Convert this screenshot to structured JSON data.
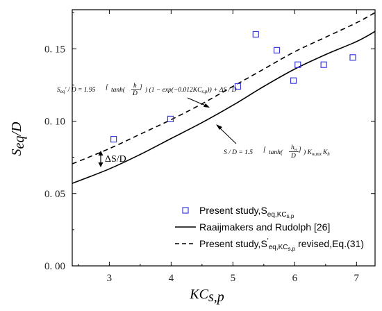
{
  "chart_data": {
    "type": "scatter",
    "xlabel": "KC",
    "xlabel_sub": "s,p",
    "ylabel": "S",
    "ylabel_sub": "eq",
    "ylabel_tail": "/D",
    "xlim": [
      2.4,
      7.3
    ],
    "ylim": [
      0.0,
      0.177
    ],
    "xticks": [
      3,
      4,
      5,
      6,
      7
    ],
    "xtick_labels": [
      "3",
      "4",
      "5",
      "6",
      "7"
    ],
    "yticks": [
      0.0,
      0.05,
      0.1,
      0.15
    ],
    "ytick_labels": [
      "0. 00",
      "0. 05",
      "0. 10",
      "0. 15"
    ],
    "grid": false,
    "legend_position": "bottom-right",
    "series": [
      {
        "name": "Present study,S",
        "name_sub": "eq,KC",
        "name_subsub": "s,p",
        "kind": "scatter",
        "marker": "open-square",
        "color": "#3b3bd9",
        "x": [
          3.07,
          3.99,
          5.08,
          5.37,
          5.71,
          5.98,
          6.05,
          6.47,
          6.94
        ],
        "y": [
          0.0875,
          0.1015,
          0.124,
          0.16,
          0.149,
          0.128,
          0.139,
          0.139,
          0.144
        ]
      },
      {
        "name": "Raaijmakers and Rudolph [26]",
        "kind": "line",
        "style": "solid",
        "color": "#000000",
        "x": [
          2.4,
          3.0,
          3.5,
          4.0,
          4.5,
          5.0,
          5.5,
          6.0,
          6.5,
          7.0,
          7.3
        ],
        "y": [
          0.057,
          0.067,
          0.077,
          0.088,
          0.099,
          0.111,
          0.124,
          0.136,
          0.146,
          0.155,
          0.162
        ]
      },
      {
        "name": "Present study,S",
        "name_sup": "'",
        "name_sub": "eq,KC",
        "name_subsub": "s,p",
        "name_tail": " revised,Eq.(31)",
        "kind": "line",
        "style": "dashed",
        "color": "#000000",
        "x": [
          2.4,
          3.0,
          3.5,
          4.0,
          4.5,
          5.0,
          5.5,
          6.0,
          6.5,
          7.0,
          7.3
        ],
        "y": [
          0.0705,
          0.081,
          0.091,
          0.101,
          0.112,
          0.124,
          0.136,
          0.148,
          0.158,
          0.168,
          0.175
        ]
      }
    ],
    "annotations": {
      "dashed_formula_a": "S",
      "dashed_formula_b": "' / D = 1.95",
      "dashed_formula_c": "tanh(",
      "dashed_formula_c2": "h",
      "dashed_formula_d": "D",
      "dashed_formula_e": ") (1 − exp(−0.012KC",
      "dashed_formula_e_sub": "s,p",
      "dashed_formula_f": ")) + ΔS / D",
      "solid_formula_a": "S / D = 1.5",
      "solid_formula_b": "tanh(",
      "solid_formula_b2": "h",
      "solid_formula_b2_sub": "w",
      "solid_formula_c": "D",
      "solid_formula_d": ") K",
      "solid_formula_d_sub": "w,mx",
      "solid_formula_e": "K",
      "solid_formula_e_sub": "h",
      "delta_label": "ΔS/D"
    }
  }
}
